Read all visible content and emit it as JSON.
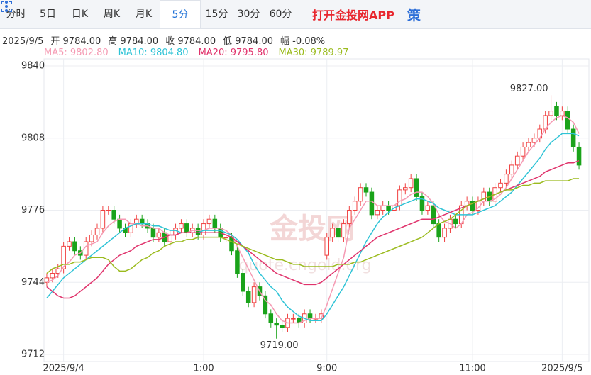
{
  "header": {
    "tabs": [
      "分时",
      "5日",
      "日K",
      "周K",
      "月K",
      "5分",
      "15分",
      "30分",
      "60分"
    ],
    "active_tab": 5,
    "brand": "打开金投网APP",
    "icon_text": "策"
  },
  "info": {
    "date": "2025/9/5",
    "items": [
      "开 9784.00",
      "高 9784.00",
      "收 9784.00",
      "低 9784.00",
      "幅 -0.08%"
    ]
  },
  "chart_data": {
    "type": "candlestick",
    "ylim": [
      9712,
      9840
    ],
    "yticks": [
      9712,
      9744,
      9776,
      9808,
      9840
    ],
    "grid": true,
    "up_color": "#f04040",
    "down_color": "#1aa31a",
    "max_label": "9827.00",
    "min_label": "9719.00",
    "watermark": "金投网",
    "watermark_url": "quote.cngold.org",
    "categories": [
      null,
      null,
      null,
      "2025/9/4",
      null,
      null,
      null,
      null,
      null,
      null,
      null,
      null,
      null,
      null,
      null,
      null,
      null,
      null,
      null,
      null,
      null,
      null,
      null,
      null,
      null,
      null,
      null,
      null,
      "1:00",
      null,
      null,
      null,
      null,
      null,
      null,
      null,
      null,
      null,
      null,
      null,
      null,
      null,
      null,
      null,
      null,
      null,
      null,
      null,
      null,
      null,
      "9:00",
      null,
      null,
      null,
      null,
      null,
      null,
      null,
      null,
      null,
      null,
      null,
      null,
      null,
      null,
      null,
      null,
      null,
      null,
      null,
      null,
      null,
      null,
      null,
      null,
      null,
      "11:00",
      null,
      null,
      null,
      null,
      null,
      null,
      null,
      null,
      null,
      null,
      null,
      null,
      null,
      null,
      null,
      "2025/9/5",
      null,
      null,
      null
    ],
    "open": [
      9744,
      9746,
      9748,
      9750,
      9760,
      9762,
      9758,
      9756,
      9762,
      9765,
      9768,
      9776,
      9776,
      9772,
      9768,
      9766,
      9770,
      9772,
      9770,
      9768,
      9764,
      9766,
      9762,
      9765,
      9768,
      9770,
      9766,
      9768,
      9765,
      9770,
      9772,
      9768,
      9764,
      9764,
      9758,
      9748,
      9740,
      9735,
      9742,
      9738,
      9730,
      9726,
      9725,
      9724,
      9728,
      9728,
      9726,
      9730,
      9728,
      9728,
      9756,
      9764,
      9768,
      9764,
      9770,
      9776,
      9780,
      9786,
      9784,
      9774,
      9776,
      9778,
      9776,
      9778,
      9785,
      9786,
      9790,
      9782,
      9776,
      9778,
      9770,
      9764,
      9768,
      9772,
      9770,
      9778,
      9780,
      9776,
      9780,
      9784,
      9780,
      9786,
      9788,
      9792,
      9796,
      9800,
      9804,
      9806,
      9808,
      9812,
      9818,
      9822,
      9818,
      9820,
      9812,
      9804
    ],
    "high": [
      9748,
      9750,
      9752,
      9762,
      9764,
      9764,
      9760,
      9764,
      9767,
      9770,
      9778,
      9778,
      9778,
      9774,
      9770,
      9772,
      9774,
      9774,
      9772,
      9770,
      9768,
      9768,
      9767,
      9770,
      9772,
      9772,
      9770,
      9770,
      9772,
      9774,
      9774,
      9770,
      9766,
      9766,
      9760,
      9750,
      9742,
      9744,
      9744,
      9740,
      9732,
      9728,
      9727,
      9730,
      9730,
      9730,
      9732,
      9732,
      9730,
      9732,
      9766,
      9770,
      9770,
      9772,
      9778,
      9782,
      9788,
      9788,
      9786,
      9778,
      9780,
      9780,
      9780,
      9787,
      9788,
      9792,
      9792,
      9784,
      9780,
      9780,
      9772,
      9770,
      9774,
      9774,
      9780,
      9782,
      9782,
      9782,
      9786,
      9786,
      9788,
      9790,
      9794,
      9798,
      9802,
      9806,
      9808,
      9810,
      9814,
      9820,
      9827,
      9824,
      9822,
      9822,
      9814,
      9806
    ],
    "low": [
      9742,
      9744,
      9746,
      9748,
      9758,
      9756,
      9754,
      9754,
      9760,
      9763,
      9766,
      9774,
      9770,
      9766,
      9764,
      9764,
      9768,
      9768,
      9766,
      9762,
      9762,
      9760,
      9760,
      9763,
      9766,
      9764,
      9764,
      9763,
      9763,
      9768,
      9766,
      9762,
      9762,
      9756,
      9746,
      9738,
      9733,
      9733,
      9736,
      9728,
      9724,
      9719,
      9722,
      9722,
      9726,
      9724,
      9724,
      9726,
      9726,
      9726,
      9754,
      9762,
      9762,
      9762,
      9768,
      9774,
      9778,
      9782,
      9772,
      9772,
      9774,
      9774,
      9774,
      9776,
      9783,
      9784,
      9780,
      9774,
      9774,
      9768,
      9762,
      9762,
      9766,
      9768,
      9768,
      9776,
      9774,
      9774,
      9778,
      9778,
      9778,
      9784,
      9786,
      9790,
      9794,
      9798,
      9802,
      9804,
      9806,
      9810,
      9816,
      9816,
      9816,
      9810,
      9802,
      9794
    ],
    "close": [
      9746,
      9748,
      9750,
      9760,
      9762,
      9758,
      9756,
      9762,
      9765,
      9768,
      9776,
      9776,
      9772,
      9768,
      9766,
      9770,
      9772,
      9770,
      9768,
      9764,
      9766,
      9762,
      9765,
      9768,
      9770,
      9766,
      9768,
      9765,
      9770,
      9772,
      9768,
      9764,
      9764,
      9758,
      9748,
      9740,
      9735,
      9742,
      9738,
      9730,
      9726,
      9725,
      9724,
      9728,
      9728,
      9726,
      9730,
      9728,
      9728,
      9730,
      9764,
      9768,
      9764,
      9770,
      9776,
      9780,
      9786,
      9784,
      9774,
      9776,
      9778,
      9776,
      9778,
      9785,
      9786,
      9790,
      9782,
      9776,
      9778,
      9770,
      9764,
      9768,
      9772,
      9770,
      9778,
      9780,
      9776,
      9780,
      9784,
      9780,
      9786,
      9788,
      9792,
      9796,
      9800,
      9804,
      9806,
      9808,
      9812,
      9818,
      9820,
      9818,
      9820,
      9812,
      9804,
      9796
    ],
    "series": [
      {
        "name": "MA5",
        "legend_label": "MA5: 9802.80",
        "color": "#f59ab3",
        "values": [
          9744,
          9745,
          9747,
          9751,
          9753,
          9756,
          9757,
          9760,
          9761,
          9762,
          9766,
          9769,
          9771,
          9772,
          9772,
          9770,
          9770,
          9769,
          9769,
          9768,
          9768,
          9766,
          9765,
          9765,
          9766,
          9766,
          9767,
          9767,
          9767,
          9768,
          9768,
          9768,
          9767,
          9765,
          9760,
          9755,
          9750,
          9745,
          9740,
          9736,
          9734,
          9730,
          9727,
          9726,
          9726,
          9726,
          9727,
          9728,
          9728,
          9728,
          9734,
          9741,
          9748,
          9755,
          9768,
          9772,
          9776,
          9780,
          9780,
          9778,
          9778,
          9778,
          9778,
          9780,
          9781,
          9783,
          9784,
          9784,
          9782,
          9779,
          9774,
          9771,
          9770,
          9768,
          9770,
          9774,
          9775,
          9777,
          9780,
          9780,
          9781,
          9783,
          9786,
          9790,
          9794,
          9798,
          9802,
          9805,
          9808,
          9812,
          9815,
          9817,
          9818,
          9817,
          9815,
          9810
        ]
      },
      {
        "name": "MA10",
        "legend_label": "MA10: 9804.80",
        "color": "#2ec3d6",
        "values": [
          9737,
          9740,
          9743,
          9746,
          9748,
          9750,
          9752,
          9754,
          9756,
          9758,
          9760,
          9762,
          9764,
          9766,
          9768,
          9769,
          9770,
          9770,
          9770,
          9769,
          9769,
          9768,
          9767,
          9767,
          9766,
          9766,
          9766,
          9766,
          9767,
          9767,
          9767,
          9767,
          9766,
          9765,
          9763,
          9760,
          9757,
          9752,
          9748,
          9745,
          9742,
          9740,
          9736,
          9733,
          9731,
          9729,
          9728,
          9727,
          9727,
          9727,
          9730,
          9734,
          9738,
          9742,
          9747,
          9752,
          9757,
          9762,
          9766,
          9770,
          9773,
          9775,
          9777,
          9778,
          9779,
          9780,
          9781,
          9781,
          9780,
          9779,
          9777,
          9776,
          9775,
          9774,
          9774,
          9774,
          9774,
          9775,
          9776,
          9777,
          9778,
          9780,
          9782,
          9784,
          9787,
          9790,
          9793,
          9796,
          9799,
          9803,
          9806,
          9808,
          9810,
          9810,
          9810,
          9809
        ]
      },
      {
        "name": "MA20",
        "legend_label": "MA20: 9795.80",
        "color": "#e0336c",
        "values": [
          9742,
          9740,
          9738,
          9737,
          9737,
          9738,
          9740,
          9742,
          9744,
          9746,
          9749,
          9752,
          9754,
          9756,
          9757,
          9758,
          9760,
          9761,
          9762,
          9763,
          9763,
          9764,
          9765,
          9765,
          9766,
          9766,
          9766,
          9766,
          9766,
          9766,
          9766,
          9766,
          9765,
          9764,
          9762,
          9760,
          9758,
          9756,
          9754,
          9752,
          9750,
          9748,
          9747,
          9746,
          9745,
          9744,
          9743,
          9743,
          9743,
          9744,
          9746,
          9748,
          9750,
          9752,
          9754,
          9756,
          9758,
          9760,
          9762,
          9764,
          9765,
          9766,
          9767,
          9768,
          9769,
          9770,
          9771,
          9772,
          9772,
          9772,
          9773,
          9774,
          9775,
          9776,
          9777,
          9778,
          9779,
          9780,
          9781,
          9782,
          9783,
          9784,
          9785,
          9786,
          9787,
          9788,
          9789,
          9790,
          9791,
          9793,
          9794,
          9795,
          9796,
          9797,
          9797,
          9798
        ]
      },
      {
        "name": "MA30",
        "legend_label": "MA30: 9789.97",
        "color": "#9bbb1e",
        "values": [
          9748,
          9750,
          9751,
          9752,
          9752,
          9753,
          9753,
          9754,
          9755,
          9755,
          9755,
          9754,
          9751,
          9749,
          9749,
          9750,
          9752,
          9754,
          9755,
          9757,
          9758,
          9760,
          9761,
          9762,
          9762,
          9763,
          9763,
          9764,
          9764,
          9764,
          9764,
          9764,
          9763,
          9762,
          9761,
          9760,
          9759,
          9758,
          9757,
          9756,
          9755,
          9754,
          9754,
          9753,
          9752,
          9752,
          9751,
          9751,
          9751,
          9751,
          9751,
          9751,
          9752,
          9752,
          9752,
          9753,
          9753,
          9754,
          9755,
          9756,
          9757,
          9758,
          9759,
          9760,
          9761,
          9762,
          9763,
          9764,
          9766,
          9768,
          9770,
          9771,
          9772,
          9774,
          9776,
          9778,
          9779,
          9780,
          9781,
          9782,
          9783,
          9784,
          9785,
          9785,
          9786,
          9787,
          9787,
          9788,
          9788,
          9789,
          9789,
          9789,
          9789,
          9789,
          9790,
          9790
        ]
      }
    ]
  }
}
